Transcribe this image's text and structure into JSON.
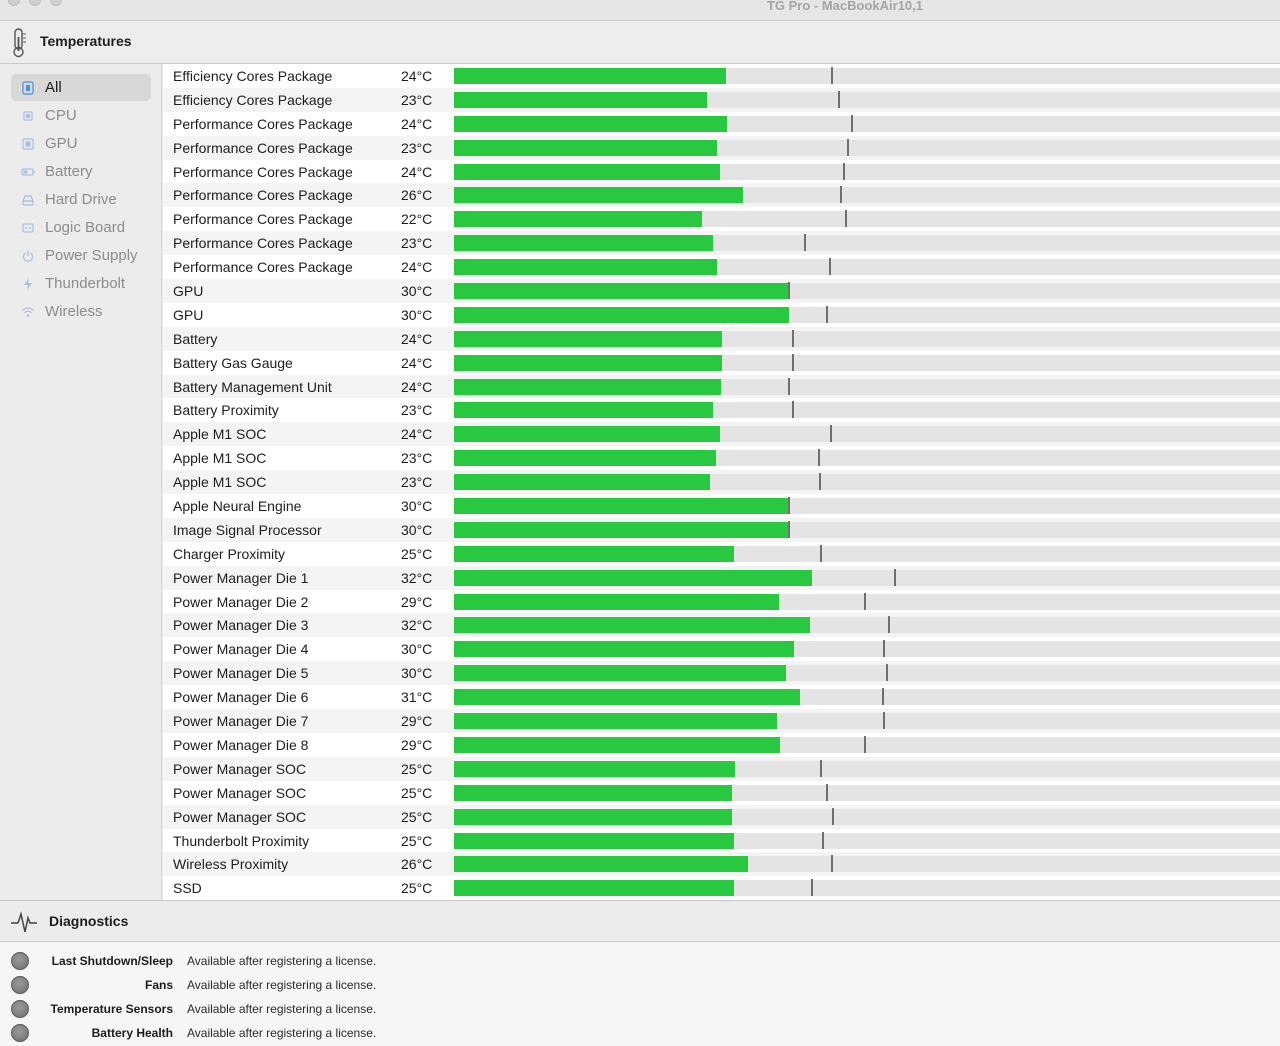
{
  "window": {
    "title": "TG Pro - MacBookAir10,1"
  },
  "toolbar": {
    "title": "Temperatures",
    "icon": "thermometer-icon"
  },
  "colors": {
    "bar_fill": "#28c840",
    "bar_track": "#e4e4e4",
    "marker": "#6f6f6f",
    "selected_sidebar": "#d8d8d8"
  },
  "sidebar": {
    "items": [
      {
        "label": "All",
        "icon": "all-sensors-icon",
        "selected": true
      },
      {
        "label": "CPU",
        "icon": "cpu-icon"
      },
      {
        "label": "GPU",
        "icon": "gpu-icon"
      },
      {
        "label": "Battery",
        "icon": "battery-icon"
      },
      {
        "label": "Hard Drive",
        "icon": "hard-drive-icon"
      },
      {
        "label": "Logic Board",
        "icon": "logic-board-icon"
      },
      {
        "label": "Power Supply",
        "icon": "power-icon"
      },
      {
        "label": "Thunderbolt",
        "icon": "thunderbolt-icon"
      },
      {
        "label": "Wireless",
        "icon": "wifi-icon"
      }
    ]
  },
  "sensors": [
    {
      "name": "Efficiency Cores Package",
      "temp": "24°C",
      "level": 0.329,
      "max_level": 0.458
    },
    {
      "name": "Efficiency Cores Package",
      "temp": "23°C",
      "level": 0.306,
      "max_level": 0.466
    },
    {
      "name": "Performance Cores Package",
      "temp": "24°C",
      "level": 0.331,
      "max_level": 0.482
    },
    {
      "name": "Performance Cores Package",
      "temp": "23°C",
      "level": 0.318,
      "max_level": 0.477
    },
    {
      "name": "Performance Cores Package",
      "temp": "24°C",
      "level": 0.322,
      "max_level": 0.472
    },
    {
      "name": "Performance Cores Package",
      "temp": "26°C",
      "level": 0.35,
      "max_level": 0.468
    },
    {
      "name": "Performance Cores Package",
      "temp": "22°C",
      "level": 0.3,
      "max_level": 0.475
    },
    {
      "name": "Performance Cores Package",
      "temp": "23°C",
      "level": 0.314,
      "max_level": 0.425
    },
    {
      "name": "Performance Cores Package",
      "temp": "24°C",
      "level": 0.319,
      "max_level": 0.455
    },
    {
      "name": "GPU",
      "temp": "30°C",
      "level": 0.406,
      "max_level": 0.406
    },
    {
      "name": "GPU",
      "temp": "30°C",
      "level": 0.406,
      "max_level": 0.452
    },
    {
      "name": "Battery",
      "temp": "24°C",
      "level": 0.324,
      "max_level": 0.41
    },
    {
      "name": "Battery Gas Gauge",
      "temp": "24°C",
      "level": 0.324,
      "max_level": 0.41
    },
    {
      "name": "Battery Management Unit",
      "temp": "24°C",
      "level": 0.323,
      "max_level": 0.406
    },
    {
      "name": "Battery Proximity",
      "temp": "23°C",
      "level": 0.313,
      "max_level": 0.41
    },
    {
      "name": "Apple M1 SOC",
      "temp": "24°C",
      "level": 0.322,
      "max_level": 0.456
    },
    {
      "name": "Apple M1 SOC",
      "temp": "23°C",
      "level": 0.317,
      "max_level": 0.442
    },
    {
      "name": "Apple M1 SOC",
      "temp": "23°C",
      "level": 0.31,
      "max_level": 0.443
    },
    {
      "name": "Apple Neural Engine",
      "temp": "30°C",
      "level": 0.406,
      "max_level": 0.406
    },
    {
      "name": "Image Signal Processor",
      "temp": "30°C",
      "level": 0.406,
      "max_level": 0.406
    },
    {
      "name": "Charger Proximity",
      "temp": "25°C",
      "level": 0.339,
      "max_level": 0.444
    },
    {
      "name": "Power Manager Die 1",
      "temp": "32°C",
      "level": 0.433,
      "max_level": 0.534
    },
    {
      "name": "Power Manager Die 2",
      "temp": "29°C",
      "level": 0.394,
      "max_level": 0.498
    },
    {
      "name": "Power Manager Die 3",
      "temp": "32°C",
      "level": 0.431,
      "max_level": 0.527
    },
    {
      "name": "Power Manager Die 4",
      "temp": "30°C",
      "level": 0.412,
      "max_level": 0.52
    },
    {
      "name": "Power Manager Die 5",
      "temp": "30°C",
      "level": 0.402,
      "max_level": 0.524
    },
    {
      "name": "Power Manager Die 6",
      "temp": "31°C",
      "level": 0.419,
      "max_level": 0.519
    },
    {
      "name": "Power Manager Die 7",
      "temp": "29°C",
      "level": 0.391,
      "max_level": 0.52
    },
    {
      "name": "Power Manager Die 8",
      "temp": "29°C",
      "level": 0.395,
      "max_level": 0.497
    },
    {
      "name": "Power Manager SOC",
      "temp": "25°C",
      "level": 0.34,
      "max_level": 0.444
    },
    {
      "name": "Power Manager SOC",
      "temp": "25°C",
      "level": 0.337,
      "max_level": 0.451
    },
    {
      "name": "Power Manager SOC",
      "temp": "25°C",
      "level": 0.337,
      "max_level": 0.459
    },
    {
      "name": "Thunderbolt Proximity",
      "temp": "25°C",
      "level": 0.339,
      "max_level": 0.447
    },
    {
      "name": "Wireless Proximity",
      "temp": "26°C",
      "level": 0.356,
      "max_level": 0.458
    },
    {
      "name": "SSD",
      "temp": "25°C",
      "level": 0.339,
      "max_level": 0.434
    }
  ],
  "diagnostics": {
    "title": "Diagnostics",
    "icon": "activity-icon",
    "items": [
      {
        "label": "Last Shutdown/Sleep",
        "value": "Available after registering a license."
      },
      {
        "label": "Fans",
        "value": "Available after registering a license."
      },
      {
        "label": "Temperature Sensors",
        "value": "Available after registering a license."
      },
      {
        "label": "Battery Health",
        "value": "Available after registering a license."
      }
    ]
  }
}
